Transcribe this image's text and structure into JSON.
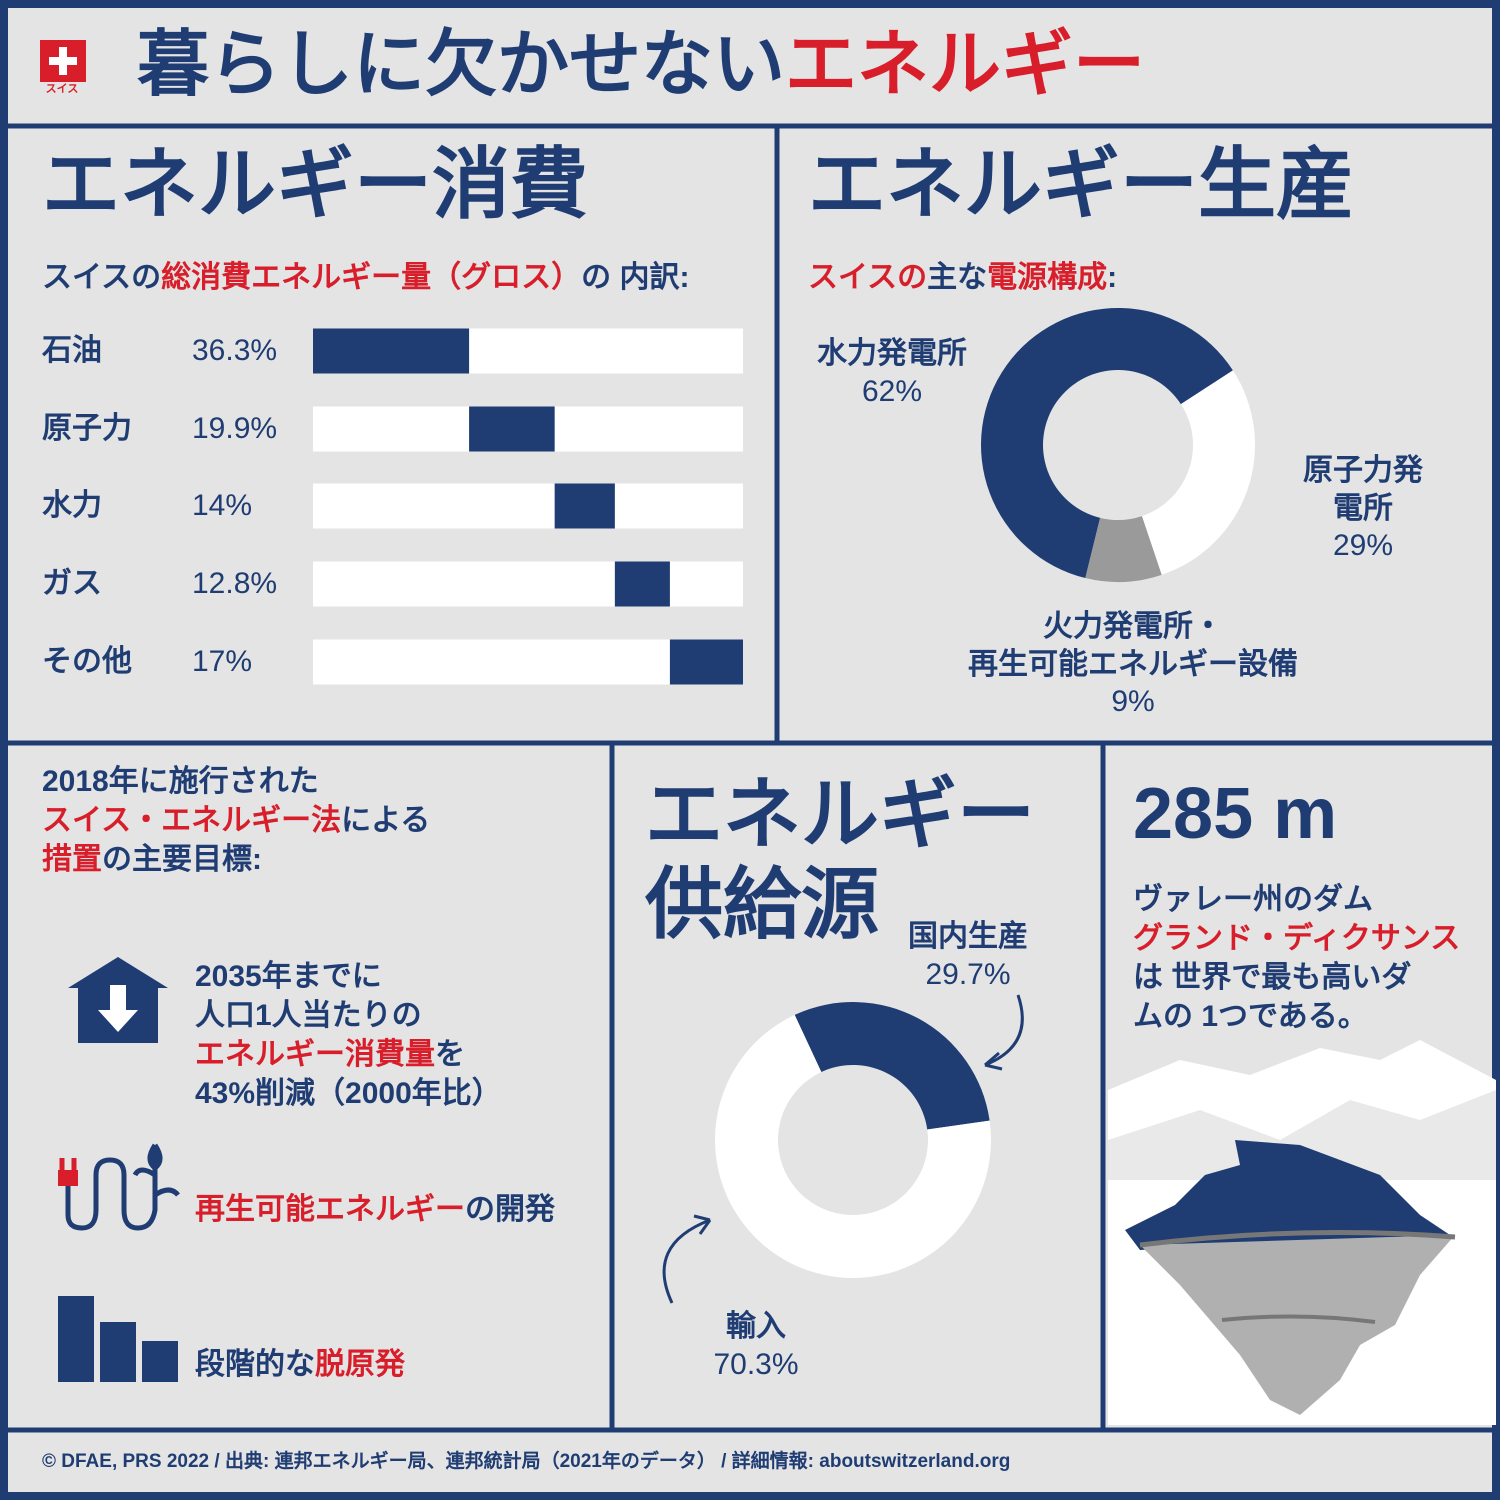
{
  "header": {
    "flag_label": "スイス",
    "title_parts": [
      "暮らしに欠かせない",
      "エネルギー"
    ]
  },
  "consumption": {
    "title": "エネルギー消費",
    "subtitle_parts": [
      "スイスの",
      "総消費エネルギー量（グロス）",
      "の 内訳:"
    ]
  },
  "production": {
    "title": "エネルギー生産",
    "subtitle_parts": [
      "スイスの",
      "主な",
      "電源構成",
      ":"
    ]
  },
  "supply": {
    "title": "エネルギー\n供給源"
  },
  "law": {
    "intro_parts": [
      "2018年に施行された\n",
      "スイス・エネルギー法",
      "による\n",
      "措置",
      "の主要目標:"
    ],
    "goals": [
      [
        "2035年までに\n人口1人当たりの\n",
        "エネルギー消費量",
        "を\n43%削減（2000年比）"
      ],
      [
        "再生可能エネルギー",
        "の開発"
      ],
      [
        "段階的な",
        "脱原発"
      ]
    ]
  },
  "dam": {
    "height": "285 m",
    "text_parts": [
      "ヴァレー州のダム\n",
      "グランド・ディクサンス",
      "\nは 世界で最も高いダ\nムの 1つである。"
    ]
  },
  "footer": "© DFAE, PRS 2022 / 出典: 連邦エネルギー局、連邦統計局（2021年のデータ） / 詳細情報: aboutswitzerland.org",
  "chart_data": [
    {
      "type": "bar",
      "categories": [
        "石油",
        "原子力",
        "水力",
        "ガス",
        "その他"
      ],
      "values": [
        36.3,
        19.9,
        14,
        12.8,
        17
      ],
      "value_labels": [
        "36.3%",
        "19.9%",
        "14%",
        "12.8%",
        "17%"
      ],
      "color": "#1f3d73"
    },
    {
      "type": "donut",
      "categories": [
        "水力発電所",
        "原子力発電所",
        "火力発電所・\n再生可能エネルギー設備"
      ],
      "values": [
        62,
        29,
        9
      ],
      "value_labels": [
        "62%",
        "29%",
        "9%"
      ],
      "colors": [
        "#1f3d73",
        "#ffffff",
        "#9a9a9a"
      ]
    },
    {
      "type": "donut",
      "categories": [
        "国内生産",
        "輸入"
      ],
      "values": [
        29.7,
        70.3
      ],
      "value_labels": [
        "29.7%",
        "70.3%"
      ],
      "colors": [
        "#1f3d73",
        "#ffffff"
      ]
    }
  ]
}
